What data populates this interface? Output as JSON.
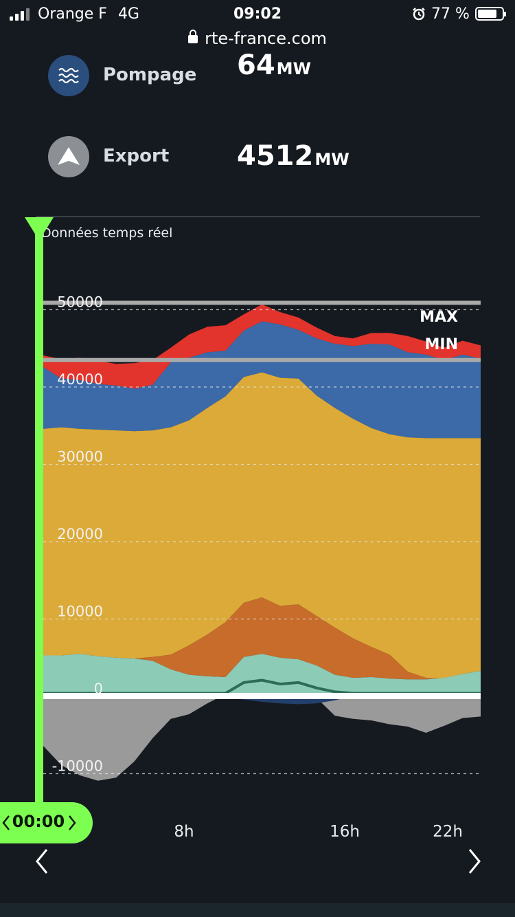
{
  "status": {
    "carrier": "Orange F",
    "network": "4G",
    "time": "09:02",
    "battery": "77 %"
  },
  "browser": {
    "url": "rte-france.com"
  },
  "mix": [
    {
      "label": "Pompage",
      "value": "64",
      "unit": "MW",
      "icon": "waves-icon",
      "color": "#2a4e7d"
    },
    {
      "label": "Export",
      "value": "4512",
      "unit": "MW",
      "icon": "arrow-up-icon",
      "color": "#8c8f94"
    }
  ],
  "chart": {
    "caption": "Données temps réel",
    "max_label": "MAX",
    "min_label": "MIN",
    "cursor_time": "00:00",
    "x_ticks": [
      "8h",
      "16h",
      "22h"
    ]
  },
  "chart_data": {
    "type": "area",
    "x_hours": [
      0,
      1,
      2,
      3,
      4,
      5,
      6,
      7,
      8,
      9,
      10,
      11,
      12,
      13,
      14,
      15,
      16,
      17,
      18,
      19,
      20,
      21,
      22,
      23,
      24
    ],
    "y_ticks": [
      -10000,
      0,
      10000,
      20000,
      30000,
      40000,
      50000
    ],
    "ylim": [
      -12000,
      52000
    ],
    "reference_lines": {
      "max": 50800,
      "min": 43400
    },
    "colors": {
      "grey": "#9a9a9a",
      "navy": "#233f6b",
      "darkgreen": "#2e6b58",
      "teal": "#8ccbb6",
      "orange": "#c76c2a",
      "yellow": "#dbaa38",
      "blue": "#3c6aa8",
      "red": "#e2342c"
    },
    "series": [
      {
        "name": "grey",
        "values": [
          -6500,
          -9000,
          -10300,
          -11000,
          -10600,
          -8500,
          -5500,
          -3000,
          -2400,
          -1000,
          200,
          300,
          200,
          100,
          200,
          -300,
          -2600,
          -3000,
          -3200,
          -3700,
          -4000,
          -4800,
          -3900,
          -2900,
          -2700
        ]
      },
      {
        "name": "navy",
        "values": [
          0,
          0,
          0,
          0,
          0,
          0,
          0,
          0,
          0,
          0,
          0,
          -500,
          -800,
          -1000,
          -1100,
          -1000,
          -600,
          0,
          0,
          0,
          0,
          0,
          0,
          0,
          0
        ]
      },
      {
        "name": "darkgreen",
        "values": [
          300,
          300,
          300,
          300,
          300,
          300,
          300,
          300,
          300,
          300,
          300,
          1700,
          2000,
          1500,
          1700,
          1000,
          500,
          300,
          300,
          300,
          300,
          300,
          300,
          300,
          300
        ]
      },
      {
        "name": "teal",
        "values": [
          5200,
          5200,
          5400,
          5100,
          4900,
          4800,
          4500,
          3400,
          2700,
          2500,
          2400,
          5000,
          5400,
          4900,
          4700,
          3900,
          2700,
          2300,
          2400,
          2200,
          2100,
          2100,
          2300,
          2800,
          3200
        ]
      },
      {
        "name": "orange",
        "values": [
          5200,
          5200,
          5400,
          5100,
          4900,
          4800,
          5000,
          5300,
          6500,
          7900,
          9500,
          12000,
          12700,
          11600,
          11800,
          10300,
          8800,
          7400,
          6300,
          5300,
          3100,
          2300,
          2200,
          2800,
          3200
        ]
      },
      {
        "name": "yellow",
        "values": [
          34500,
          34700,
          34500,
          34400,
          34300,
          34200,
          34300,
          34700,
          35600,
          37200,
          38700,
          41200,
          41800,
          41100,
          41000,
          38800,
          37200,
          35800,
          34600,
          33800,
          33400,
          33300,
          33300,
          33300,
          33300
        ]
      },
      {
        "name": "blue",
        "values": [
          42500,
          41000,
          40800,
          40300,
          40100,
          39700,
          40200,
          43100,
          43700,
          44400,
          44600,
          47200,
          48400,
          48000,
          47300,
          46200,
          45500,
          45200,
          45500,
          45400,
          44400,
          44100,
          43400,
          44100,
          43600
        ]
      },
      {
        "name": "red",
        "values": [
          44000,
          43500,
          43700,
          43300,
          42900,
          43000,
          43400,
          45000,
          46700,
          47700,
          47900,
          49300,
          50600,
          49600,
          48900,
          47600,
          46500,
          46200,
          46900,
          46900,
          46500,
          45800,
          45000,
          45900,
          45300
        ]
      }
    ]
  }
}
